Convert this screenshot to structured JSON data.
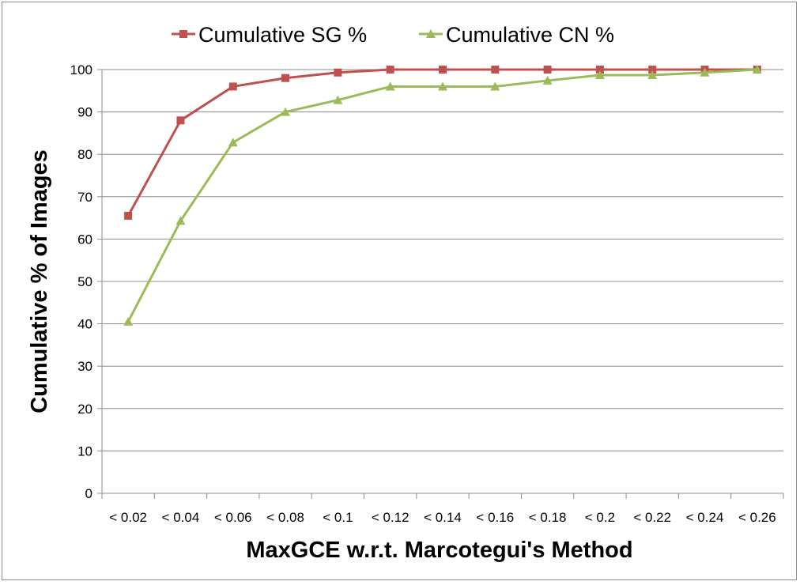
{
  "chart_data": {
    "type": "line",
    "title": "",
    "xlabel": "MaxGCE w.r.t. Marcotegui's Method",
    "ylabel": "Cumulative % of Images",
    "categories": [
      "< 0.02",
      "< 0.04",
      "< 0.06",
      "< 0.08",
      "< 0.1",
      "< 0.12",
      "< 0.14",
      "< 0.16",
      "< 0.18",
      "< 0.2",
      "< 0.22",
      "< 0.24",
      "< 0.26"
    ],
    "ylim": [
      0,
      100
    ],
    "yticks": [
      "0",
      "10",
      "20",
      "30",
      "40",
      "50",
      "60",
      "70",
      "80",
      "90",
      "100"
    ],
    "grid": true,
    "legend_position": "top",
    "series": [
      {
        "name": "Cumulative SG %",
        "color": "#c0504d",
        "marker": "square",
        "values": [
          65.5,
          88,
          96,
          98,
          99.3,
          100,
          100,
          100,
          100,
          100,
          100,
          100,
          100
        ]
      },
      {
        "name": "Cumulative CN %",
        "color": "#9bbb59",
        "marker": "triangle",
        "values": [
          40.5,
          64.3,
          82.8,
          90,
          92.8,
          96,
          96,
          96,
          97.4,
          98.7,
          98.7,
          99.3,
          100
        ]
      }
    ]
  }
}
